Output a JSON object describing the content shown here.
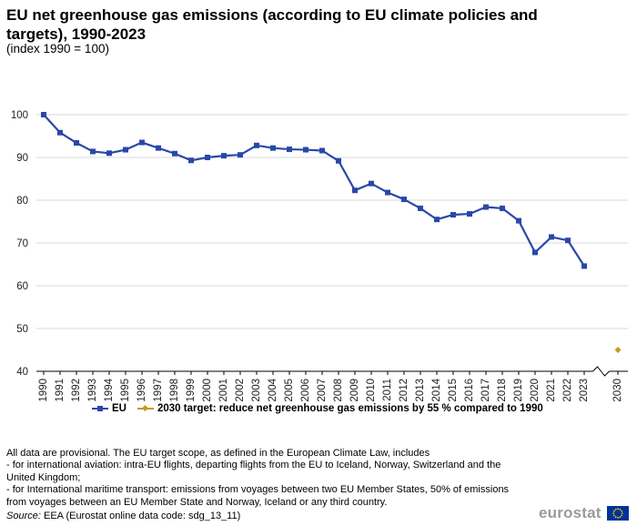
{
  "title": "EU net greenhouse gas emissions (according to EU climate policies and targets), 1990-2023",
  "subtitle": "(index 1990 = 100)",
  "chart_data": {
    "type": "line",
    "title": "EU net greenhouse gas emissions (according to EU climate policies and targets), 1990-2023",
    "ylabel": "index 1990 = 100",
    "xlabel": "",
    "ylim": [
      40,
      100
    ],
    "yticks": [
      40,
      50,
      60,
      70,
      80,
      90,
      100
    ],
    "grid": true,
    "legend_position": "bottom",
    "categories": [
      "1990",
      "1991",
      "1992",
      "1993",
      "1994",
      "1995",
      "1996",
      "1997",
      "1998",
      "1999",
      "2000",
      "2001",
      "2002",
      "2003",
      "2004",
      "2005",
      "2006",
      "2007",
      "2008",
      "2009",
      "2010",
      "2011",
      "2012",
      "2013",
      "2014",
      "2015",
      "2016",
      "2017",
      "2018",
      "2019",
      "2020",
      "2021",
      "2022",
      "2023",
      "2030"
    ],
    "axis_break_after": "2023",
    "series": [
      {
        "name": "EU",
        "color": "#2a47a8",
        "marker": "square",
        "x": [
          "1990",
          "1991",
          "1992",
          "1993",
          "1994",
          "1995",
          "1996",
          "1997",
          "1998",
          "1999",
          "2000",
          "2001",
          "2002",
          "2003",
          "2004",
          "2005",
          "2006",
          "2007",
          "2008",
          "2009",
          "2010",
          "2011",
          "2012",
          "2013",
          "2014",
          "2015",
          "2016",
          "2017",
          "2018",
          "2019",
          "2020",
          "2021",
          "2022",
          "2023"
        ],
        "values": [
          100.0,
          95.8,
          93.4,
          91.4,
          91.0,
          91.8,
          93.5,
          92.2,
          90.9,
          89.3,
          90.0,
          90.4,
          90.6,
          92.8,
          92.2,
          91.9,
          91.8,
          91.6,
          89.2,
          82.3,
          83.9,
          81.8,
          80.2,
          78.1,
          75.5,
          76.6,
          76.8,
          78.4,
          78.1,
          75.2,
          67.8,
          71.4,
          70.6,
          64.6
        ]
      },
      {
        "name": "2030 target: reduce net greenhouse gas emissions by 55 % compared to 1990",
        "color": "#c49a1e",
        "marker": "diamond",
        "x": [
          "2030"
        ],
        "values": [
          45.0
        ]
      }
    ]
  },
  "notes": [
    "All data are provisional. The EU target scope, as defined in the European Climate Law, includes",
    "- for international  aviation: intra-EU flights, departing flights from the EU to Iceland,  Norway, Switzerland and the United Kingdom;",
    "- for International  maritime transport:  emissions from voyages between two EU Member States, 50% of emissions from voyages between an EU Member State and Norway, Iceland or any third country."
  ],
  "source": {
    "label": "Source:",
    "text": " EEA (Eurostat online data code: sdg_13_11)"
  },
  "logo": {
    "text": "eurostat",
    "flag_color": "#003399",
    "star_color": "#ffcc00"
  }
}
